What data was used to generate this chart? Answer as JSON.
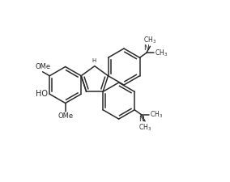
{
  "background_color": "#ffffff",
  "line_color": "#2a2a2a",
  "line_width": 1.1,
  "font_size": 7.0,
  "figsize": [
    2.84,
    2.25
  ],
  "dpi": 100,
  "xlim": [
    -0.55,
    0.58
  ],
  "ylim": [
    -0.46,
    0.42
  ]
}
